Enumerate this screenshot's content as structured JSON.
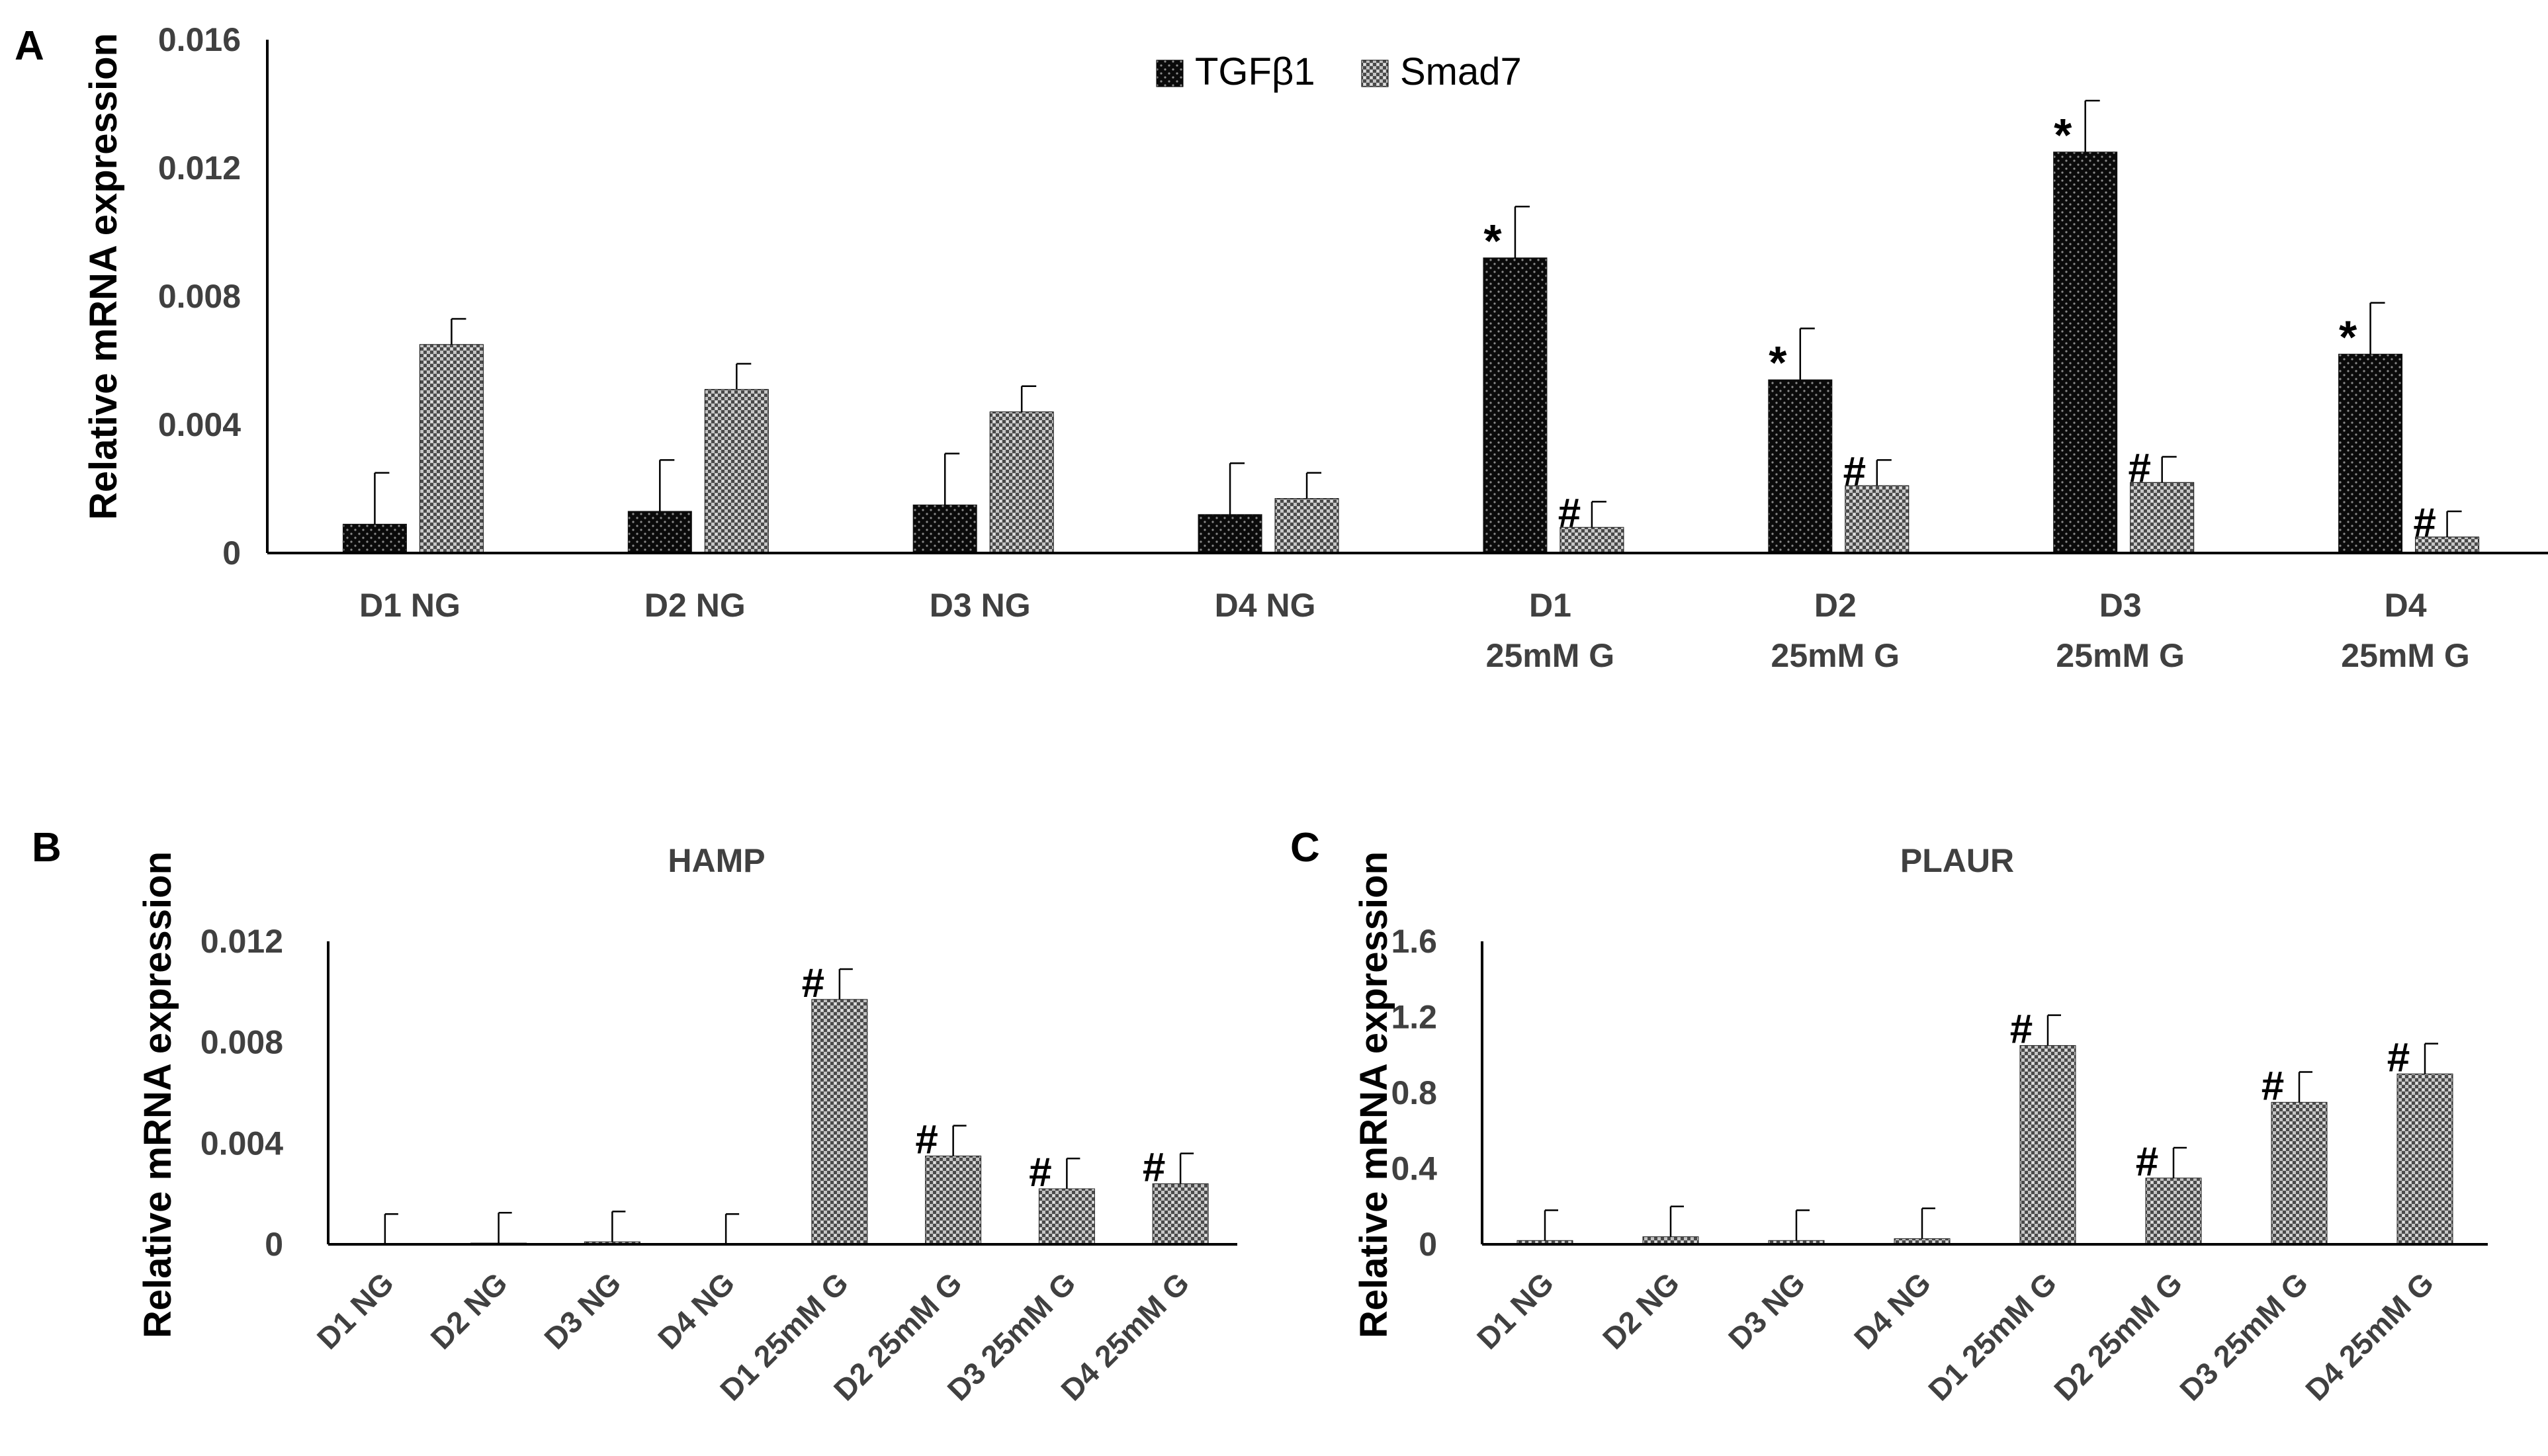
{
  "chart_data": [
    {
      "panel": "A",
      "type": "bar",
      "title": "",
      "ylabel": "Relative mRNA expression",
      "xlabel": "",
      "ylim": [
        0,
        0.016
      ],
      "yticks": [
        "0",
        "0.004",
        "0.008",
        "0.012",
        "0.016"
      ],
      "ytick_values": [
        0,
        0.004,
        0.008,
        0.012,
        0.016
      ],
      "categories": [
        [
          "D1 NG"
        ],
        [
          "D2 NG"
        ],
        [
          "D3 NG"
        ],
        [
          "D4 NG"
        ],
        [
          "D1",
          "25mM G"
        ],
        [
          "D2",
          "25mM G"
        ],
        [
          "D3",
          "25mM G"
        ],
        [
          "D4",
          "25mM G"
        ]
      ],
      "legend_position": "top-center",
      "series": [
        {
          "name": "TGFβ1",
          "pattern": "dark",
          "values": [
            0.0009,
            0.0013,
            0.0015,
            0.0012,
            0.0092,
            0.0054,
            0.0125,
            0.0062
          ],
          "errors": [
            0.0016,
            0.0016,
            0.0016,
            0.0016,
            0.0016,
            0.0016,
            0.0016,
            0.0016
          ],
          "annotations": [
            "",
            "",
            "",
            "",
            "*",
            "*",
            "*",
            "*"
          ]
        },
        {
          "name": "Smad7",
          "pattern": "light",
          "values": [
            0.0065,
            0.0051,
            0.0044,
            0.0017,
            0.0008,
            0.0021,
            0.0022,
            0.0005
          ],
          "errors": [
            0.0008,
            0.0008,
            0.0008,
            0.0008,
            0.0008,
            0.0008,
            0.0008,
            0.0008
          ],
          "annotations": [
            "",
            "",
            "",
            "",
            "#",
            "#",
            "#",
            "#"
          ]
        }
      ]
    },
    {
      "panel": "B",
      "type": "bar",
      "title": "HAMP",
      "ylabel": "Relative mRNA expression",
      "ylim": [
        0,
        0.012
      ],
      "yticks": [
        "0",
        "0.004",
        "0.008",
        "0.012"
      ],
      "ytick_values": [
        0,
        0.004,
        0.008,
        0.012
      ],
      "categories": [
        "D1 NG",
        "D2 NG",
        "D3 NG",
        "D4 NG",
        "D1 25mM G",
        "D2 25mM G",
        "D3 25mM G",
        "D4 25mM G"
      ],
      "series": [
        {
          "name": "HAMP",
          "values": [
            0.0,
            5e-05,
            0.0001,
            0.0,
            0.0097,
            0.0035,
            0.0022,
            0.0024
          ],
          "errors": [
            0.0012,
            0.0012,
            0.0012,
            0.0012,
            0.0012,
            0.0012,
            0.0012,
            0.0012
          ],
          "annotations": [
            "",
            "",
            "",
            "",
            "#",
            "#",
            "#",
            "#"
          ]
        }
      ]
    },
    {
      "panel": "C",
      "type": "bar",
      "title": "PLAUR",
      "ylabel": "Relative mRNA expression",
      "ylim": [
        0,
        1.6
      ],
      "yticks": [
        "0",
        "0.4",
        "0.8",
        "1.2",
        "1.6"
      ],
      "ytick_values": [
        0,
        0.4,
        0.8,
        1.2,
        1.6
      ],
      "categories": [
        "D1 NG",
        "D2 NG",
        "D3 NG",
        "D4 NG",
        "D1 25mM G",
        "D2 25mM G",
        "D3 25mM G",
        "D4 25mM G"
      ],
      "series": [
        {
          "name": "PLAUR",
          "values": [
            0.02,
            0.04,
            0.02,
            0.03,
            1.05,
            0.35,
            0.75,
            0.9
          ],
          "errors": [
            0.16,
            0.16,
            0.16,
            0.16,
            0.16,
            0.16,
            0.16,
            0.16
          ],
          "annotations": [
            "",
            "",
            "",
            "",
            "#",
            "#",
            "#",
            "#"
          ]
        }
      ]
    }
  ]
}
